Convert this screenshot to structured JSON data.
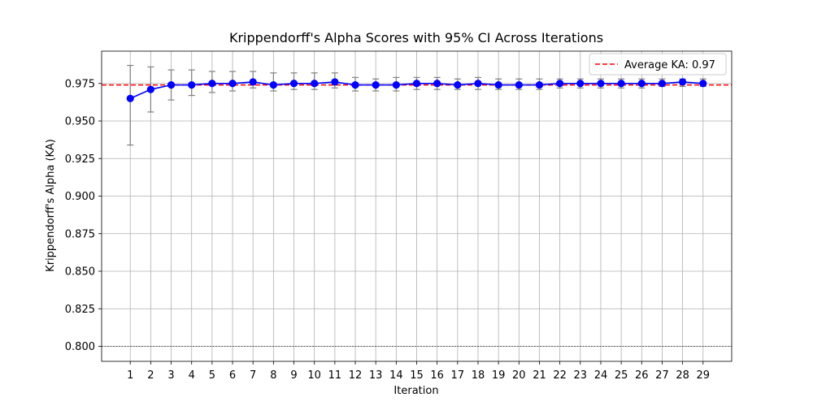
{
  "chart_data": {
    "type": "line",
    "title": "Krippendorff's Alpha Scores with 95% CI Across Iterations",
    "xlabel": "Iteration",
    "ylabel": "Krippendorff's Alpha (KA)",
    "x": [
      1,
      2,
      3,
      4,
      5,
      6,
      7,
      8,
      9,
      10,
      11,
      12,
      13,
      14,
      15,
      16,
      17,
      18,
      19,
      20,
      21,
      22,
      23,
      24,
      25,
      26,
      27,
      28,
      29
    ],
    "xlim": [
      -0.4,
      30.4
    ],
    "ylim": [
      0.79,
      0.9965
    ],
    "yticks": [
      0.8,
      0.825,
      0.85,
      0.875,
      0.9,
      0.925,
      0.95,
      0.975
    ],
    "ytick_labels": [
      "0.800",
      "0.825",
      "0.850",
      "0.875",
      "0.900",
      "0.925",
      "0.950",
      "0.975"
    ],
    "grid": true,
    "series": [
      {
        "values": [
          0.965,
          0.971,
          0.974,
          0.974,
          0.975,
          0.975,
          0.976,
          0.974,
          0.975,
          0.975,
          0.976,
          0.974,
          0.974,
          0.974,
          0.975,
          0.975,
          0.974,
          0.975,
          0.974,
          0.974,
          0.974,
          0.975,
          0.975,
          0.975,
          0.975,
          0.975,
          0.975,
          0.976,
          0.975
        ],
        "ci_low": [
          0.934,
          0.956,
          0.964,
          0.967,
          0.969,
          0.97,
          0.972,
          0.97,
          0.971,
          0.971,
          0.972,
          0.97,
          0.97,
          0.97,
          0.971,
          0.971,
          0.971,
          0.971,
          0.971,
          0.971,
          0.971,
          0.972,
          0.972,
          0.972,
          0.972,
          0.972,
          0.973,
          0.973,
          0.973
        ],
        "ci_high": [
          0.987,
          0.986,
          0.984,
          0.984,
          0.983,
          0.983,
          0.983,
          0.982,
          0.982,
          0.982,
          0.982,
          0.979,
          0.978,
          0.979,
          0.979,
          0.979,
          0.978,
          0.979,
          0.978,
          0.978,
          0.978,
          0.978,
          0.978,
          0.978,
          0.978,
          0.978,
          0.978,
          0.978,
          0.978
        ],
        "color": "#0000ff"
      }
    ],
    "average_line": {
      "value": 0.974,
      "label": "Average KA: 0.97",
      "color": "#ff0000"
    },
    "reference_line": {
      "value": 0.8,
      "color": "#000000"
    },
    "legend": {
      "placement": "top-right",
      "entries": [
        "Average KA: 0.97"
      ]
    }
  }
}
